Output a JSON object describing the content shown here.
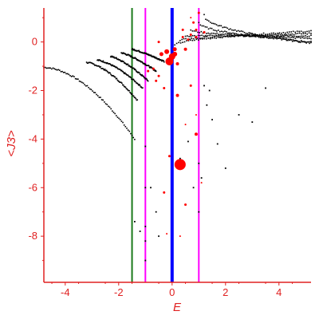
{
  "chart_data": {
    "type": "scatter",
    "title": "",
    "xlabel": "E",
    "ylabel": "<J3>",
    "xlim": [
      -4.8,
      5.2
    ],
    "ylim": [
      -9.9,
      1.4
    ],
    "x_ticks": [
      -4,
      -2,
      0,
      2,
      4
    ],
    "y_ticks": [
      0,
      -2,
      -4,
      -6,
      -8
    ],
    "x_tick_labels": [
      "-4",
      "-2",
      "0",
      "2",
      "4"
    ],
    "y_tick_labels": [
      "0",
      "-2",
      "-4",
      "-6",
      "-8"
    ],
    "axis_color": "#e02020",
    "grid": false,
    "legend": "none",
    "vertical_lines": [
      {
        "x": -1.5,
        "color": "#1a7a1a",
        "width": 2
      },
      {
        "x": -1.0,
        "color": "#ff00ff",
        "width": 2
      },
      {
        "x": 0.0,
        "color": "#0000ff",
        "width": 4
      },
      {
        "x": 1.0,
        "color": "#ff00ff",
        "width": 2
      }
    ],
    "series": [
      {
        "color": "#000000",
        "marker": "small-dot",
        "bands": [
          {
            "x": [
              -4.8,
              -1.4
            ],
            "y": [
              -1.05,
              -4.0
            ],
            "curve": 1.8
          },
          {
            "x": [
              -3.2,
              -1.3
            ],
            "y": [
              -0.85,
              -2.4
            ],
            "curve": 1.6
          },
          {
            "x": [
              -2.8,
              -1.1
            ],
            "y": [
              -0.75,
              -1.9
            ],
            "curve": 1.5
          },
          {
            "x": [
              -2.3,
              -0.9
            ],
            "y": [
              -0.6,
              -1.6
            ],
            "curve": 1.4
          },
          {
            "x": [
              -1.9,
              -0.6
            ],
            "y": [
              -0.45,
              -1.2
            ],
            "curve": 1.3
          },
          {
            "x": [
              -1.5,
              -0.3
            ],
            "y": [
              -0.3,
              -0.8
            ],
            "curve": 1.2
          },
          {
            "x": [
              0.1,
              5.2
            ],
            "y": [
              -0.15,
              0.45
            ],
            "curve": 0.5
          },
          {
            "x": [
              0.3,
              5.2
            ],
            "y": [
              0.05,
              0.35
            ],
            "curve": 0.5
          },
          {
            "x": [
              0.5,
              5.2
            ],
            "y": [
              0.25,
              0.25
            ],
            "curve": 0.5
          },
          {
            "x": [
              0.7,
              5.2
            ],
            "y": [
              0.5,
              0.15
            ],
            "curve": 0.5
          },
          {
            "x": [
              1.0,
              5.2
            ],
            "y": [
              0.8,
              0.0
            ],
            "curve": 0.5
          },
          {
            "x": [
              1.2,
              5.2
            ],
            "y": [
              1.1,
              -0.05
            ],
            "curve": 0.5
          }
        ],
        "points": [
          [
            -1.0,
            -7.6
          ],
          [
            -1.0,
            -8.2
          ],
          [
            -1.0,
            -9.0
          ],
          [
            -1.0,
            -6.0
          ],
          [
            -1.0,
            -4.3
          ],
          [
            -0.8,
            -6.0
          ],
          [
            -0.6,
            -7.0
          ],
          [
            -0.5,
            -8.0
          ],
          [
            -1.4,
            -7.4
          ],
          [
            -1.2,
            -7.8
          ],
          [
            0.3,
            -4.8
          ],
          [
            0.6,
            -4.1
          ],
          [
            0.8,
            -6.0
          ],
          [
            1.0,
            -7.0
          ],
          [
            1.0,
            -5.0
          ],
          [
            1.1,
            -5.6
          ],
          [
            1.3,
            -2.6
          ],
          [
            1.5,
            -3.2
          ],
          [
            1.7,
            -4.2
          ],
          [
            2.0,
            -5.2
          ],
          [
            2.5,
            -3.0
          ],
          [
            3.0,
            -3.3
          ],
          [
            3.5,
            -1.9
          ],
          [
            1.2,
            -1.8
          ],
          [
            1.4,
            -2.0
          ]
        ]
      },
      {
        "color": "#ff0000",
        "marker": "sized-dot",
        "points": [
          [
            -0.1,
            -0.8,
            10
          ],
          [
            0.0,
            -0.6,
            8
          ],
          [
            -0.2,
            -0.4,
            6
          ],
          [
            0.1,
            -0.5,
            6
          ],
          [
            0.3,
            -5.05,
            14
          ],
          [
            0.1,
            -0.3,
            5
          ],
          [
            -0.4,
            -0.5,
            5
          ],
          [
            0.2,
            -0.9,
            4
          ],
          [
            -0.7,
            -1.1,
            3
          ],
          [
            -0.5,
            -1.4,
            3
          ],
          [
            -0.6,
            -1.6,
            3
          ],
          [
            -0.9,
            -1.2,
            3
          ],
          [
            -0.3,
            -1.9,
            3
          ],
          [
            0.5,
            -0.3,
            4
          ],
          [
            0.6,
            0.1,
            3
          ],
          [
            0.7,
            0.3,
            3
          ],
          [
            0.4,
            0.2,
            3
          ],
          [
            0.9,
            0.5,
            3
          ],
          [
            0.8,
            0.8,
            3
          ],
          [
            1.0,
            1.2,
            3
          ],
          [
            0.7,
            1.0,
            2
          ],
          [
            0.2,
            -2.2,
            4
          ],
          [
            0.7,
            -1.8,
            3
          ],
          [
            0.9,
            -3.8,
            4
          ],
          [
            0.5,
            -3.4,
            2
          ],
          [
            -0.1,
            -4.7,
            3
          ],
          [
            -0.3,
            -6.2,
            3
          ],
          [
            0.5,
            -6.7,
            3
          ],
          [
            1.1,
            -5.8,
            2
          ],
          [
            0.3,
            -8.0,
            2
          ],
          [
            -0.2,
            -7.9,
            2
          ],
          [
            0.9,
            -3.0,
            2
          ],
          [
            -0.5,
            0.0,
            3
          ],
          [
            0.9,
            0.2,
            3
          ],
          [
            1.2,
            0.4,
            3
          ],
          [
            0.4,
            0.5,
            3
          ]
        ]
      }
    ]
  }
}
